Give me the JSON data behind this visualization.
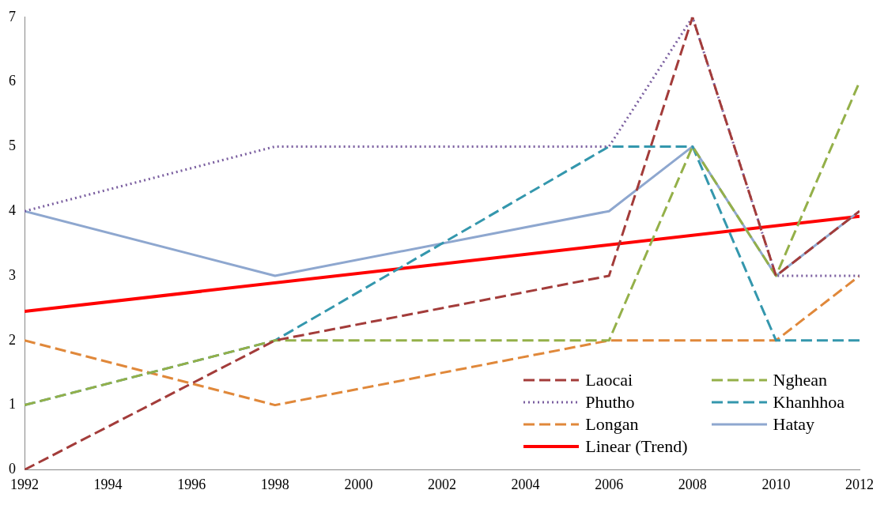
{
  "chart_data": {
    "type": "line",
    "x": [
      1992,
      1998,
      2006,
      2008,
      2010,
      2012
    ],
    "series": [
      {
        "name": "Laocai",
        "color": "#a33c3a",
        "line_style": "dashed",
        "values": [
          0,
          2,
          3,
          7,
          3,
          4
        ]
      },
      {
        "name": "Nghean",
        "color": "#94b049",
        "line_style": "dashed",
        "values": [
          1,
          2,
          2,
          5,
          3,
          6
        ]
      },
      {
        "name": "Phutho",
        "color": "#7b5fa0",
        "line_style": "dotted",
        "values": [
          4,
          5,
          5,
          7,
          3,
          3
        ]
      },
      {
        "name": "Khanhhoa",
        "color": "#3497ad",
        "line_style": "dashed",
        "values": [
          1,
          2,
          5,
          5,
          2,
          2
        ]
      },
      {
        "name": "Longan",
        "color": "#e0883a",
        "line_style": "dashed",
        "values": [
          2,
          1,
          2,
          2,
          2,
          3
        ]
      },
      {
        "name": "Hatay",
        "color": "#8ea7cf",
        "line_style": "solid",
        "values": [
          4,
          3,
          4,
          5,
          3,
          4
        ]
      },
      {
        "name": "Linear (Trend)",
        "color": "#ff0000",
        "line_style": "solid",
        "x": [
          1992,
          2012
        ],
        "values": [
          2.45,
          3.92
        ]
      }
    ],
    "xlim": [
      1992,
      2012
    ],
    "xticks": [
      1992,
      1994,
      1996,
      1998,
      2000,
      2002,
      2004,
      2006,
      2008,
      2010,
      2012
    ],
    "ylim": [
      0,
      7
    ],
    "yticks": [
      0,
      1,
      2,
      3,
      4,
      5,
      6,
      7
    ],
    "grid": false,
    "legend": "bottom right",
    "marker": "none"
  }
}
